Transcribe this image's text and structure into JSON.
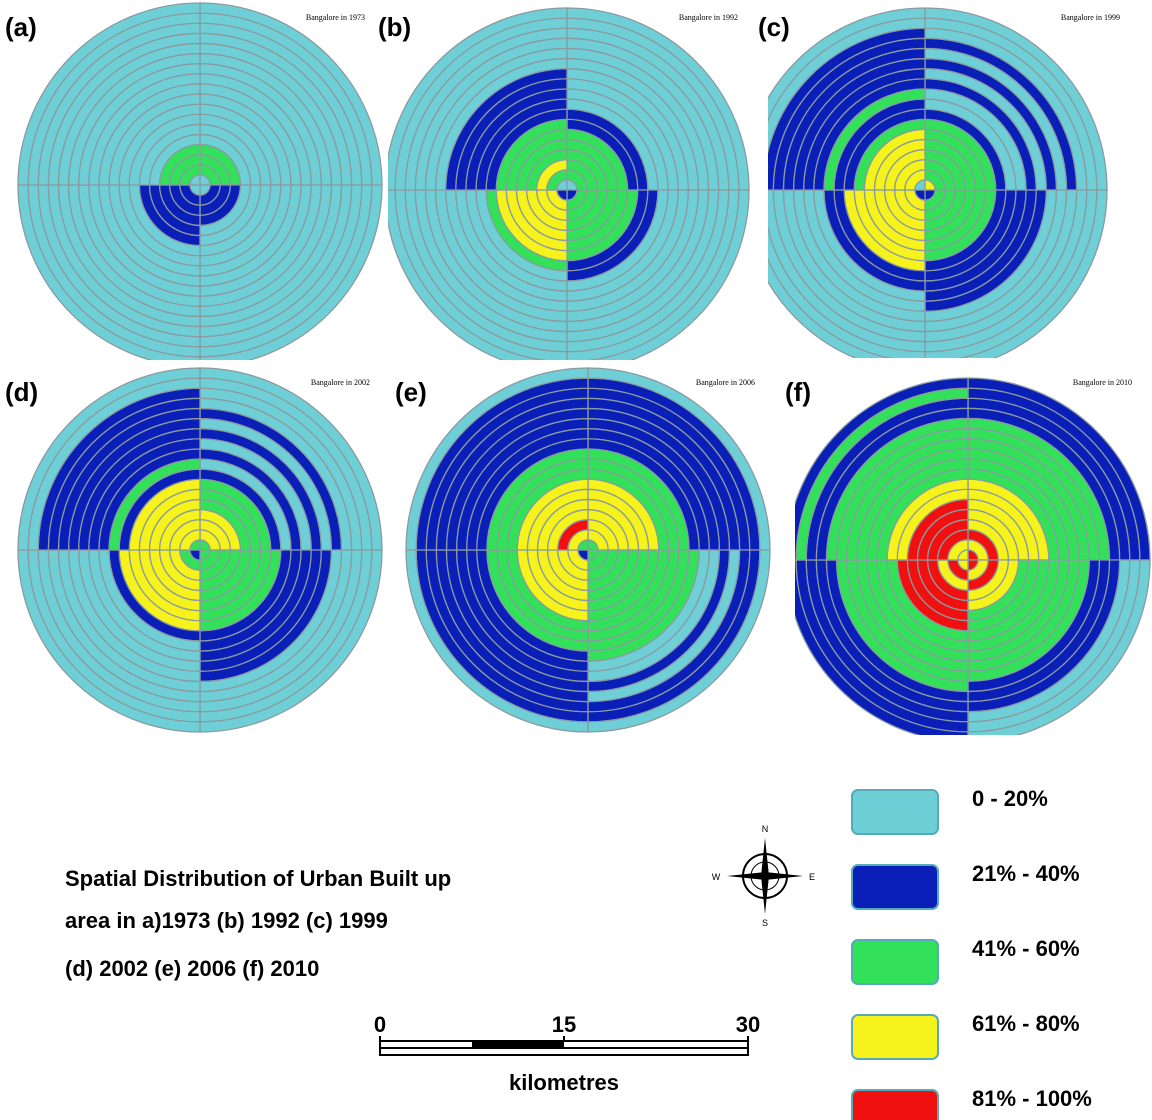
{
  "panels": [
    {
      "label": "(a)",
      "title": "Bangalore in 1973",
      "quadrants": {
        "nw": [
          0,
          2,
          2,
          2,
          0,
          0,
          0,
          0,
          0,
          0,
          0,
          0,
          0,
          0,
          0,
          0,
          0,
          0
        ],
        "ne": [
          0,
          2,
          2,
          2,
          0,
          0,
          0,
          0,
          0,
          0,
          0,
          0,
          0,
          0,
          0,
          0,
          0,
          0
        ],
        "sw": [
          0,
          1,
          1,
          1,
          1,
          1,
          0,
          0,
          0,
          0,
          0,
          0,
          0,
          0,
          0,
          0,
          0,
          0
        ],
        "se": [
          0,
          1,
          1,
          1,
          0,
          0,
          0,
          0,
          0,
          0,
          0,
          0,
          0,
          0,
          0,
          0,
          0,
          0
        ]
      }
    },
    {
      "label": "(b)",
      "title": "Bangalore in 1992",
      "quadrants": {
        "nw": [
          0,
          2,
          3,
          2,
          2,
          2,
          2,
          1,
          1,
          1,
          1,
          1,
          0,
          0,
          0,
          0,
          0,
          0
        ],
        "ne": [
          0,
          2,
          2,
          2,
          2,
          2,
          1,
          1,
          0,
          0,
          0,
          0,
          0,
          0,
          0,
          0,
          0,
          0
        ],
        "sw": [
          1,
          3,
          3,
          3,
          3,
          3,
          3,
          2,
          0,
          0,
          0,
          0,
          0,
          0,
          0,
          0,
          0,
          0
        ],
        "se": [
          1,
          2,
          2,
          2,
          2,
          2,
          2,
          1,
          1,
          0,
          0,
          0,
          0,
          0,
          0,
          0,
          0,
          0
        ]
      }
    },
    {
      "label": "(c)",
      "title": "Bangalore in 1999",
      "quadrants": {
        "nw": [
          0,
          3,
          3,
          3,
          3,
          3,
          2,
          1,
          1,
          2,
          1,
          1,
          1,
          1,
          1,
          1,
          0,
          0
        ],
        "ne": [
          3,
          2,
          2,
          2,
          2,
          2,
          2,
          1,
          0,
          0,
          1,
          0,
          1,
          0,
          1,
          0,
          0,
          0
        ],
        "sw": [
          1,
          3,
          3,
          3,
          3,
          3,
          3,
          3,
          1,
          1,
          0,
          0,
          0,
          0,
          0,
          0,
          0,
          0
        ],
        "se": [
          1,
          2,
          2,
          2,
          2,
          2,
          2,
          1,
          1,
          1,
          1,
          1,
          0,
          0,
          0,
          0,
          0,
          0
        ]
      }
    },
    {
      "label": "(d)",
      "title": "Bangalore in 2002",
      "quadrants": {
        "nw": [
          2,
          3,
          3,
          3,
          3,
          3,
          3,
          1,
          2,
          1,
          1,
          1,
          1,
          1,
          1,
          1,
          0,
          0
        ],
        "ne": [
          2,
          3,
          3,
          3,
          2,
          2,
          2,
          1,
          0,
          1,
          0,
          1,
          0,
          1,
          0,
          0,
          0,
          0
        ],
        "sw": [
          1,
          2,
          3,
          3,
          3,
          3,
          3,
          3,
          1,
          0,
          0,
          0,
          0,
          0,
          0,
          0,
          0,
          0
        ],
        "se": [
          2,
          2,
          2,
          2,
          2,
          2,
          2,
          2,
          1,
          1,
          1,
          1,
          1,
          0,
          0,
          0,
          0,
          0
        ]
      }
    },
    {
      "label": "(e)",
      "title": "Bangalore in 2006",
      "quadrants": {
        "nw": [
          2,
          3,
          4,
          3,
          3,
          3,
          3,
          2,
          2,
          2,
          1,
          1,
          1,
          1,
          1,
          1,
          1,
          0
        ],
        "ne": [
          2,
          3,
          3,
          3,
          3,
          3,
          3,
          2,
          2,
          2,
          1,
          1,
          1,
          1,
          1,
          1,
          1,
          0
        ],
        "sw": [
          1,
          3,
          3,
          3,
          3,
          3,
          3,
          2,
          2,
          2,
          1,
          1,
          1,
          1,
          1,
          1,
          1,
          0
        ],
        "se": [
          2,
          2,
          2,
          2,
          2,
          2,
          2,
          2,
          2,
          2,
          2,
          0,
          0,
          1,
          0,
          1,
          1,
          0
        ]
      }
    },
    {
      "label": "(f)",
      "title": "Bangalore in 2010",
      "quadrants": {
        "nw": [
          3,
          3,
          4,
          4,
          4,
          4,
          3,
          3,
          2,
          2,
          2,
          2,
          2,
          2,
          1,
          1,
          2,
          1
        ],
        "ne": [
          4,
          3,
          4,
          3,
          3,
          3,
          3,
          3,
          2,
          2,
          2,
          2,
          2,
          2,
          1,
          1,
          1,
          1
        ],
        "sw": [
          3,
          4,
          3,
          4,
          4,
          4,
          4,
          2,
          2,
          2,
          2,
          2,
          2,
          1,
          1,
          1,
          1,
          1
        ],
        "se": [
          4,
          3,
          4,
          3,
          3,
          2,
          2,
          2,
          2,
          2,
          2,
          2,
          1,
          1,
          1,
          0,
          0,
          0
        ]
      }
    }
  ],
  "legend": [
    {
      "label": "0 - 20%",
      "color": "#6fcfd6"
    },
    {
      "label": "21% - 40%",
      "color": "#0a1fb8"
    },
    {
      "label": "41% - 60%",
      "color": "#33e05a"
    },
    {
      "label": "61% - 80%",
      "color": "#f5f21c"
    },
    {
      "label": "81% - 100%",
      "color": "#f01010"
    }
  ],
  "caption": [
    "Spatial Distribution of Urban Built up",
    "area in a)1973 (b) 1992 (c) 1999",
    "(d) 2002 (e) 2006 (f) 2010"
  ],
  "compass": {
    "n": "N",
    "e": "E",
    "s": "S",
    "w": "W"
  },
  "scale_bar": {
    "ticks": [
      0,
      15,
      30
    ],
    "unit": "kilometres"
  }
}
